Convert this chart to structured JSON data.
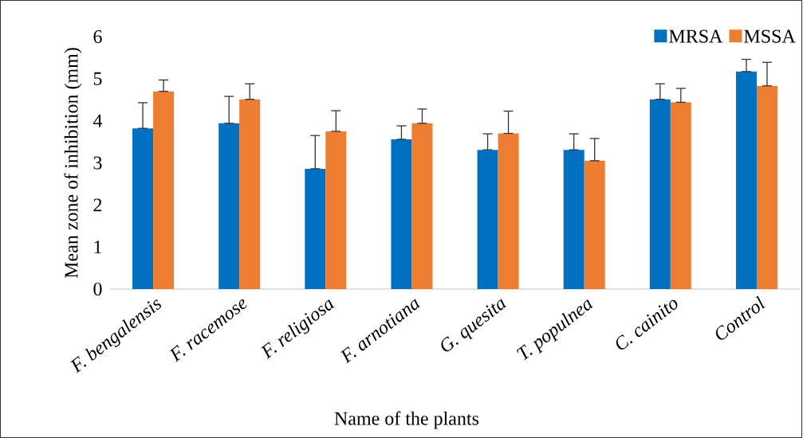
{
  "chart_data": {
    "type": "bar",
    "xlabel": "Name of the plants",
    "ylabel": "Mean zone  of inhibition  (mm)",
    "categories": [
      "F. bengalensis",
      "F. racemose",
      "F. religiosa",
      "F. arnotiana",
      "G. quesita",
      "T. populnea",
      "C. cainito",
      "Control"
    ],
    "series": [
      {
        "name": "MRSA",
        "color": "#0070c0",
        "values": [
          3.82,
          3.94,
          2.86,
          3.56,
          3.31,
          3.31,
          4.51,
          5.17
        ],
        "errors": [
          [
            3.82,
            4.43
          ],
          [
            3.94,
            4.58
          ],
          [
            2.86,
            3.65
          ],
          [
            3.56,
            3.88
          ],
          [
            3.31,
            3.69
          ],
          [
            3.31,
            3.69
          ],
          [
            4.51,
            4.88
          ],
          [
            5.17,
            5.46
          ]
        ]
      },
      {
        "name": "MSSA",
        "color": "#ed7d31",
        "values": [
          4.7,
          4.51,
          3.75,
          3.94,
          3.7,
          3.05,
          4.44,
          4.83
        ],
        "errors": [
          [
            4.7,
            4.97
          ],
          [
            4.51,
            4.88
          ],
          [
            3.75,
            4.24
          ],
          [
            3.94,
            4.28
          ],
          [
            3.7,
            4.23
          ],
          [
            3.05,
            3.58
          ],
          [
            4.44,
            4.77
          ],
          [
            4.83,
            5.39
          ]
        ]
      }
    ],
    "ylim": [
      0,
      6
    ],
    "yticks": [
      0,
      1,
      2,
      3,
      4,
      5,
      6
    ],
    "legend": "top right"
  }
}
